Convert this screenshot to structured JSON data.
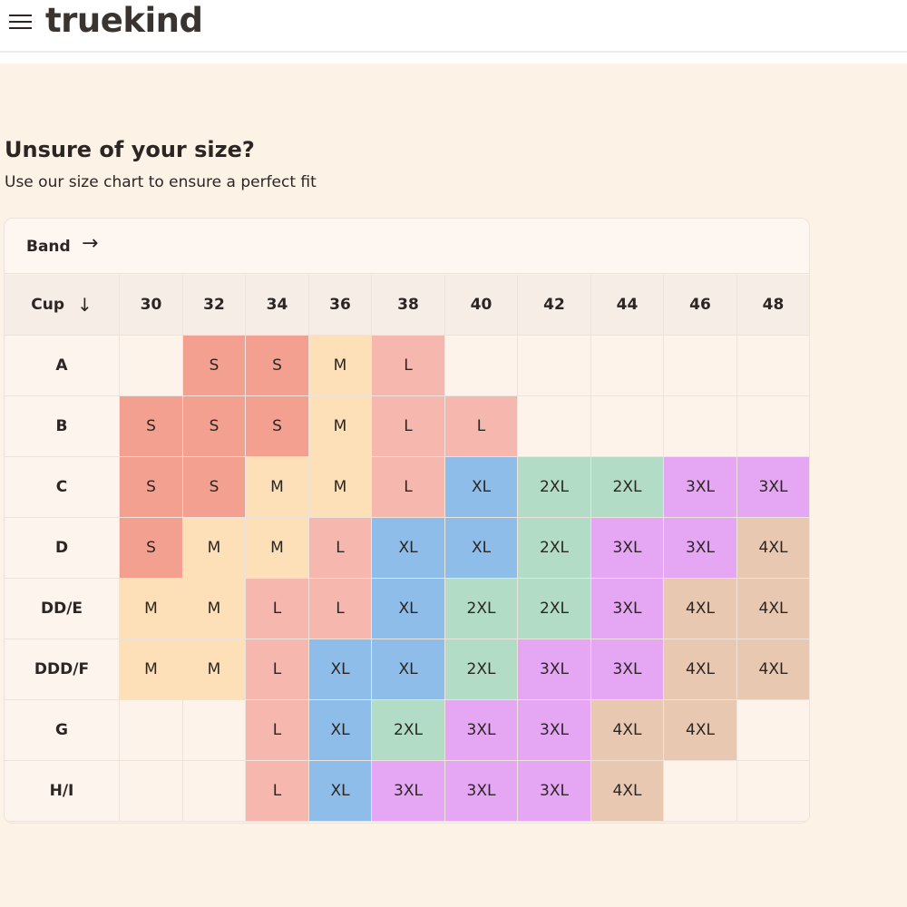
{
  "header": {
    "logo": "truekind",
    "menu_icon": "hamburger-menu-icon"
  },
  "section": {
    "title": "Unsure of your size?",
    "subtitle": "Use our size chart to ensure a perfect fit"
  },
  "size_chart": {
    "band_label": "Band",
    "band_arrow": "→",
    "cup_label": "Cup",
    "cup_arrow": "↓",
    "bands": [
      "30",
      "32",
      "34",
      "36",
      "38",
      "40",
      "42",
      "44",
      "46",
      "48"
    ],
    "rows": [
      {
        "cup": "A",
        "sizes": [
          "",
          "S",
          "S",
          "M",
          "L",
          "",
          "",
          "",
          "",
          ""
        ]
      },
      {
        "cup": "B",
        "sizes": [
          "S",
          "S",
          "S",
          "M",
          "L",
          "L",
          "",
          "",
          "",
          ""
        ]
      },
      {
        "cup": "C",
        "sizes": [
          "S",
          "S",
          "M",
          "M",
          "L",
          "XL",
          "2XL",
          "2XL",
          "3XL",
          "3XL"
        ]
      },
      {
        "cup": "D",
        "sizes": [
          "S",
          "M",
          "M",
          "L",
          "XL",
          "XL",
          "2XL",
          "3XL",
          "3XL",
          "4XL"
        ]
      },
      {
        "cup": "DD/E",
        "sizes": [
          "M",
          "M",
          "L",
          "L",
          "XL",
          "2XL",
          "2XL",
          "3XL",
          "4XL",
          "4XL"
        ]
      },
      {
        "cup": "DDD/F",
        "sizes": [
          "M",
          "M",
          "L",
          "XL",
          "XL",
          "2XL",
          "3XL",
          "3XL",
          "4XL",
          "4XL"
        ]
      },
      {
        "cup": "G",
        "sizes": [
          "",
          "",
          "L",
          "XL",
          "2XL",
          "3XL",
          "3XL",
          "4XL",
          "4XL",
          ""
        ]
      },
      {
        "cup": "H/I",
        "sizes": [
          "",
          "",
          "L",
          "XL",
          "3XL",
          "3XL",
          "3XL",
          "4XL",
          "",
          ""
        ]
      }
    ],
    "size_colors": {
      "S": "#f4a090",
      "M": "#fde0b8",
      "L": "#f5b7ae",
      "XL": "#8dbde8",
      "2XL": "#b2dcc6",
      "3XL": "#e5a7f4",
      "4XL": "#e9c8b2"
    }
  }
}
